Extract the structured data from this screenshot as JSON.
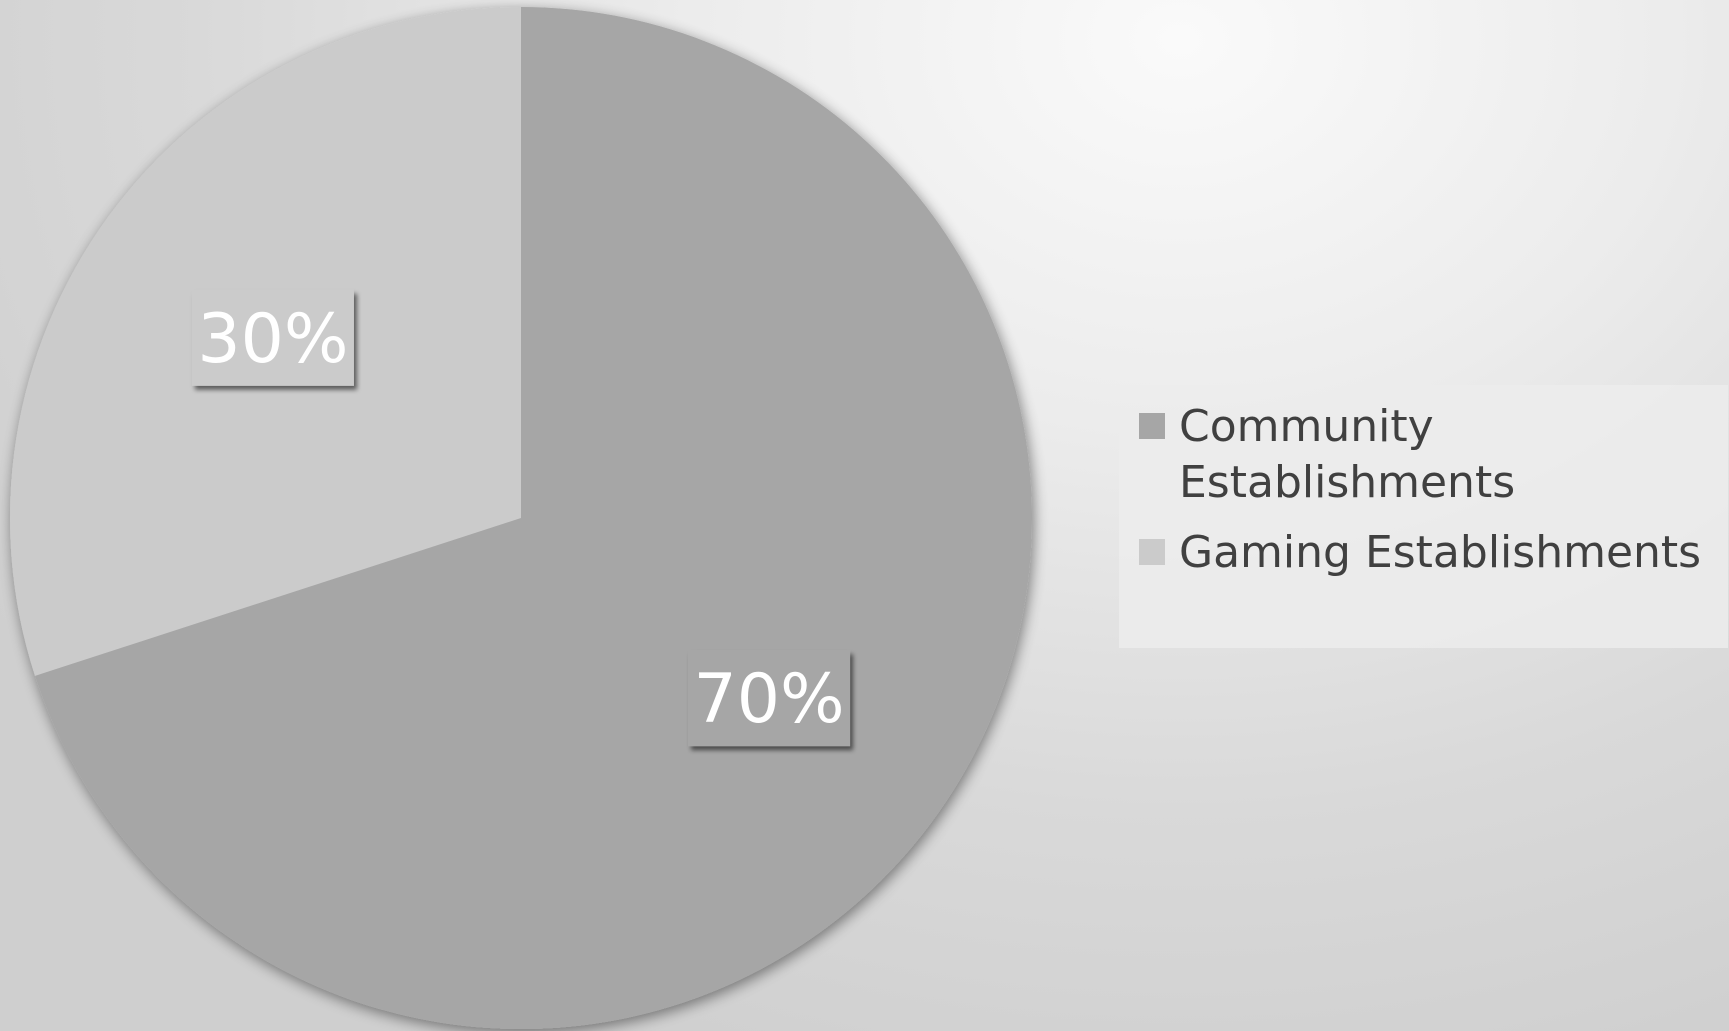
{
  "chart_data": {
    "type": "pie",
    "title": "",
    "categories": [
      "Community Establishments",
      "Gaming Establishments"
    ],
    "values": [
      70,
      30
    ],
    "data_labels": [
      "70%",
      "30%"
    ],
    "colors": [
      "#a6a6a6",
      "#cbcbcb"
    ],
    "start_angle_deg": 0,
    "direction": "clockwise",
    "legend_position": "right"
  },
  "legend": {
    "items": [
      {
        "label": "Community Establishments",
        "color": "#a6a6a6"
      },
      {
        "label": "Gaming Establishments",
        "color": "#cbcbcb"
      }
    ]
  }
}
